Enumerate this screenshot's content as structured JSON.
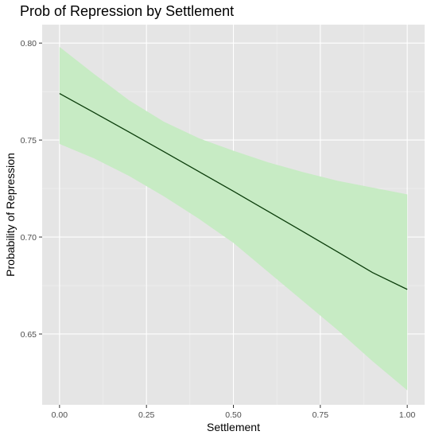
{
  "chart_data": {
    "type": "line",
    "title": "Prob of Repression by Settlement",
    "xlabel": "Settlement",
    "ylabel": "Probability of Repression",
    "xlim": [
      -0.05,
      1.05
    ],
    "ylim": [
      0.6135,
      0.8095
    ],
    "x_ticks": [
      0.0,
      0.25,
      0.5,
      0.75,
      1.0
    ],
    "x_tick_labels": [
      "0.00",
      "0.25",
      "0.50",
      "0.75",
      "1.00"
    ],
    "y_ticks": [
      0.65,
      0.7,
      0.75,
      0.8
    ],
    "y_tick_labels": [
      "0.65",
      "0.70",
      "0.75",
      "0.80"
    ],
    "grid": true,
    "series": [
      {
        "x": [
          0.0,
          0.1,
          0.2,
          0.3,
          0.4,
          0.5,
          0.6,
          0.7,
          0.8,
          0.9,
          1.0
        ],
        "y": [
          0.774,
          0.7641,
          0.7541,
          0.744,
          0.7338,
          0.7236,
          0.7132,
          0.7028,
          0.6923,
          0.6817,
          0.673
        ],
        "lower": [
          0.748,
          0.7405,
          0.7315,
          0.721,
          0.7095,
          0.697,
          0.682,
          0.667,
          0.652,
          0.636,
          0.621
        ],
        "upper": [
          0.798,
          0.784,
          0.7705,
          0.7595,
          0.751,
          0.7445,
          0.7385,
          0.7335,
          0.729,
          0.7255,
          0.722
        ]
      }
    ],
    "colors": {
      "panel": "#e5e5e5",
      "grid_major": "#ffffff",
      "ribbon": "#c7ebc4",
      "line": "#0b3d0b",
      "tick": "#333333"
    }
  }
}
